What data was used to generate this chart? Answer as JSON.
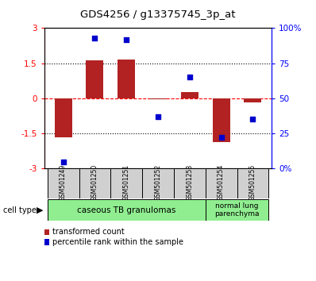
{
  "title": "GDS4256 / g13375745_3p_at",
  "samples": [
    "GSM501249",
    "GSM501250",
    "GSM501251",
    "GSM501252",
    "GSM501253",
    "GSM501254",
    "GSM501255"
  ],
  "transformed_count": [
    -1.65,
    1.62,
    1.65,
    -0.05,
    0.28,
    -1.88,
    -0.18
  ],
  "percentile_rank": [
    5,
    93,
    92,
    37,
    65,
    22,
    35
  ],
  "bar_color": "#B22222",
  "dot_color": "#0000CD",
  "ylim_left": [
    -3,
    3
  ],
  "ylim_right": [
    0,
    100
  ],
  "yticks_left": [
    -3,
    -1.5,
    0,
    1.5,
    3
  ],
  "ytick_labels_left": [
    "-3",
    "-1.5",
    "0",
    "1.5",
    "3"
  ],
  "yticks_right": [
    0,
    25,
    50,
    75,
    100
  ],
  "ytick_labels_right": [
    "0%",
    "25",
    "50",
    "75",
    "100%"
  ],
  "green_light": "#90EE90",
  "gray_box": "#d0d0d0",
  "bar_width": 0.55
}
